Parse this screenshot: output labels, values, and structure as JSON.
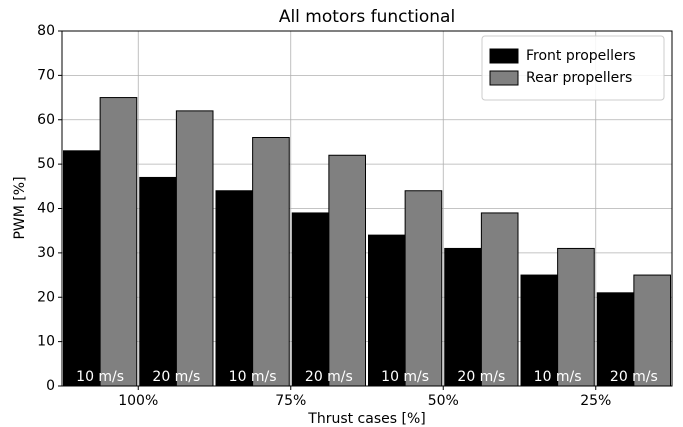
{
  "chart_data": {
    "type": "grouped_bar",
    "title": "All motors functional",
    "xlabel": "Thrust cases [%]",
    "ylabel": "PWM [%]",
    "categories": [
      "100%",
      "75%",
      "50%",
      "25%"
    ],
    "subcategories": [
      "10 m/s",
      "20 m/s"
    ],
    "series": [
      {
        "name": "Front propellers",
        "color": "#000000",
        "values": [
          [
            53,
            47
          ],
          [
            44,
            39
          ],
          [
            34,
            31
          ],
          [
            25,
            21
          ]
        ]
      },
      {
        "name": "Rear propellers",
        "color": "#808080",
        "values": [
          [
            65,
            62
          ],
          [
            56,
            52
          ],
          [
            44,
            39
          ],
          [
            31,
            25
          ]
        ]
      }
    ],
    "ylim": [
      0,
      80
    ],
    "yticks": [
      0,
      10,
      20,
      30,
      40,
      50,
      60,
      70,
      80
    ],
    "grid": true,
    "legend": "upper right"
  }
}
